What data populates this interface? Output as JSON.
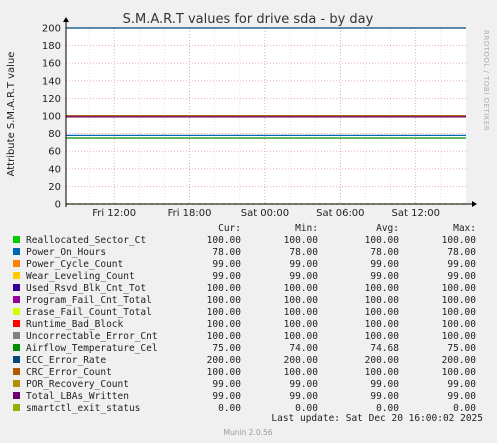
{
  "chart_data": {
    "type": "line",
    "title": "S.M.A.R.T values for drive sda - by day",
    "ylabel": "Attribute S.M.A.R.T value",
    "ylim": [
      0,
      200
    ],
    "yticks": [
      0,
      20,
      40,
      60,
      80,
      100,
      120,
      140,
      160,
      180,
      200
    ],
    "x_range": [
      "Fri 08:10",
      "Sat 16:00"
    ],
    "x_ticks": [
      "Fri 12:00",
      "Fri 18:00",
      "Sat 00:00",
      "Sat 06:00",
      "Sat 12:00"
    ],
    "grid": true,
    "side_text": "RRDTOOL / TOBI OETIKER",
    "columns": [
      "Cur:",
      "Min:",
      "Avg:",
      "Max:"
    ],
    "series": [
      {
        "name": "Reallocated_Sector_Ct",
        "color": "#00cc00",
        "cur": "100.00",
        "min": "100.00",
        "avg": "100.00",
        "max": "100.00",
        "level": 100
      },
      {
        "name": "Power_On_Hours",
        "color": "#0066b3",
        "cur": "78.00",
        "min": "78.00",
        "avg": "78.00",
        "max": "78.00",
        "level": 78
      },
      {
        "name": "Power_Cycle_Count",
        "color": "#ff8000",
        "cur": "99.00",
        "min": "99.00",
        "avg": "99.00",
        "max": "99.00",
        "level": 99
      },
      {
        "name": "Wear_Leveling_Count",
        "color": "#ffcc00",
        "cur": "99.00",
        "min": "99.00",
        "avg": "99.00",
        "max": "99.00",
        "level": 99
      },
      {
        "name": "Used_Rsvd_Blk_Cnt_Tot",
        "color": "#330099",
        "cur": "100.00",
        "min": "100.00",
        "avg": "100.00",
        "max": "100.00",
        "level": 100
      },
      {
        "name": "Program_Fail_Cnt_Total",
        "color": "#990099",
        "cur": "100.00",
        "min": "100.00",
        "avg": "100.00",
        "max": "100.00",
        "level": 100
      },
      {
        "name": "Erase_Fail_Count_Total",
        "color": "#ccff00",
        "cur": "100.00",
        "min": "100.00",
        "avg": "100.00",
        "max": "100.00",
        "level": 100
      },
      {
        "name": "Runtime_Bad_Block",
        "color": "#ff0000",
        "cur": "100.00",
        "min": "100.00",
        "avg": "100.00",
        "max": "100.00",
        "level": 100
      },
      {
        "name": "Uncorrectable_Error_Cnt",
        "color": "#808080",
        "cur": "100.00",
        "min": "100.00",
        "avg": "100.00",
        "max": "100.00",
        "level": 100
      },
      {
        "name": "Airflow_Temperature_Cel",
        "color": "#008f00",
        "cur": "75.00",
        "min": "74.00",
        "avg": "74.68",
        "max": "75.00",
        "level": 75
      },
      {
        "name": "ECC_Error_Rate",
        "color": "#00487d",
        "cur": "200.00",
        "min": "200.00",
        "avg": "200.00",
        "max": "200.00",
        "level": 200
      },
      {
        "name": "CRC_Error_Count",
        "color": "#b35a00",
        "cur": "100.00",
        "min": "100.00",
        "avg": "100.00",
        "max": "100.00",
        "level": 100
      },
      {
        "name": "POR_Recovery_Count",
        "color": "#b38f00",
        "cur": "99.00",
        "min": "99.00",
        "avg": "99.00",
        "max": "99.00",
        "level": 99
      },
      {
        "name": "Total_LBAs_Written",
        "color": "#6b006b",
        "cur": "99.00",
        "min": "99.00",
        "avg": "99.00",
        "max": "99.00",
        "level": 99
      },
      {
        "name": "smartctl_exit_status",
        "color": "#8fb300",
        "cur": "0.00",
        "min": "0.00",
        "avg": "0.00",
        "max": "0.00",
        "level": 0
      }
    ],
    "last_update": "Last update: Sat Dec 20 16:00:02 2025",
    "footer": "Munin 2.0.56"
  }
}
